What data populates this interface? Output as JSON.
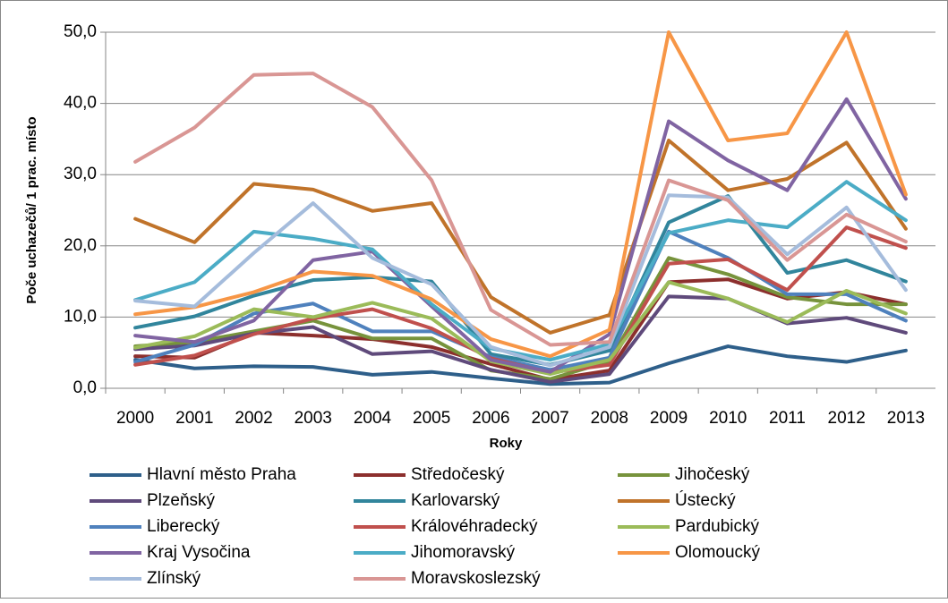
{
  "chart_data": {
    "type": "line",
    "x_label": "Roky",
    "y_label": "Poče uchazečů/ 1 prac. místo",
    "categories": [
      "2000",
      "2001",
      "2002",
      "2003",
      "2004",
      "2005",
      "2006",
      "2007",
      "2008",
      "2009",
      "2010",
      "2011",
      "2012",
      "2013"
    ],
    "ylim": [
      0,
      50
    ],
    "yticks": [
      {
        "value": 0,
        "label": "0,0"
      },
      {
        "value": 10,
        "label": "10,0"
      },
      {
        "value": 20,
        "label": "20,0"
      },
      {
        "value": 30,
        "label": "30,0"
      },
      {
        "value": 40,
        "label": "40,0"
      },
      {
        "value": 50,
        "label": "50,0"
      }
    ],
    "grid": true,
    "legend": "bottom",
    "series": [
      {
        "name": "Hlavní město Praha",
        "color": "#2e5f8a",
        "values": [
          4.0,
          2.8,
          3.1,
          3.0,
          1.9,
          2.3,
          1.4,
          0.6,
          0.8,
          3.5,
          5.9,
          4.5,
          3.7,
          5.3
        ]
      },
      {
        "name": "Středočeský",
        "color": "#8c2f2d",
        "values": [
          4.5,
          4.3,
          7.8,
          7.4,
          6.9,
          5.8,
          3.4,
          1.2,
          2.5,
          14.9,
          15.3,
          12.6,
          13.5,
          11.8
        ]
      },
      {
        "name": "Jihočeský",
        "color": "#77933c",
        "values": [
          5.9,
          6.5,
          8.0,
          9.5,
          7.0,
          7.0,
          2.5,
          1.3,
          3.8,
          18.3,
          16.0,
          12.8,
          11.8,
          11.8
        ]
      },
      {
        "name": "Plzeňský",
        "color": "#5f4a7b",
        "values": [
          5.5,
          6.0,
          7.7,
          8.6,
          4.8,
          5.2,
          2.6,
          0.9,
          2.0,
          12.9,
          12.6,
          9.1,
          9.9,
          7.8
        ]
      },
      {
        "name": "Karlovarský",
        "color": "#31859c",
        "values": [
          8.5,
          10.1,
          13.0,
          15.2,
          15.6,
          15.0,
          4.8,
          3.3,
          5.3,
          23.3,
          27.0,
          16.2,
          18.0,
          15.0
        ]
      },
      {
        "name": "Ústecký",
        "color": "#c0732a",
        "values": [
          23.8,
          20.5,
          28.7,
          27.9,
          24.9,
          26.0,
          12.8,
          7.8,
          10.3,
          34.8,
          27.8,
          29.4,
          34.5,
          22.4
        ]
      },
      {
        "name": "Liberecký",
        "color": "#4f81bd",
        "values": [
          3.7,
          6.1,
          10.5,
          11.9,
          8.0,
          8.0,
          4.4,
          2.6,
          4.3,
          22.0,
          18.3,
          13.2,
          13.2,
          9.5
        ]
      },
      {
        "name": "Královéhradecký",
        "color": "#c0504d",
        "values": [
          3.3,
          4.6,
          7.6,
          9.8,
          11.1,
          8.4,
          4.2,
          2.2,
          3.3,
          17.5,
          18.1,
          13.8,
          22.6,
          19.7
        ]
      },
      {
        "name": "Pardubický",
        "color": "#9bbb59",
        "values": [
          5.7,
          7.3,
          11.1,
          10.0,
          12.0,
          9.8,
          3.8,
          2.0,
          4.0,
          14.9,
          12.6,
          9.3,
          13.7,
          10.5
        ]
      },
      {
        "name": "Kraj Vysočina",
        "color": "#8064a2",
        "values": [
          7.4,
          6.5,
          9.5,
          18.0,
          19.2,
          11.5,
          4.0,
          2.3,
          7.6,
          37.5,
          32.0,
          27.8,
          40.6,
          26.6
        ]
      },
      {
        "name": "Jihomoravský",
        "color": "#4bacc6",
        "values": [
          12.4,
          14.9,
          22.0,
          21.0,
          19.5,
          11.8,
          5.6,
          4.0,
          6.2,
          21.8,
          23.6,
          22.6,
          29.0,
          23.6
        ]
      },
      {
        "name": "Olomoucký",
        "color": "#f79646",
        "values": [
          10.4,
          11.4,
          13.5,
          16.4,
          15.8,
          12.5,
          6.9,
          4.5,
          8.2,
          50.0,
          34.8,
          35.8,
          50.0,
          27.2
        ]
      },
      {
        "name": "Zlínský",
        "color": "#a5bcdc",
        "values": [
          12.3,
          11.5,
          19.0,
          26.0,
          18.3,
          14.6,
          5.8,
          3.2,
          5.8,
          27.1,
          26.8,
          18.8,
          25.4,
          13.8
        ]
      },
      {
        "name": "Moravskoslezský",
        "color": "#d99694",
        "values": [
          31.8,
          36.6,
          44.0,
          44.2,
          39.5,
          29.2,
          11.0,
          6.1,
          6.5,
          29.2,
          26.4,
          18.0,
          24.4,
          20.6
        ]
      }
    ]
  }
}
